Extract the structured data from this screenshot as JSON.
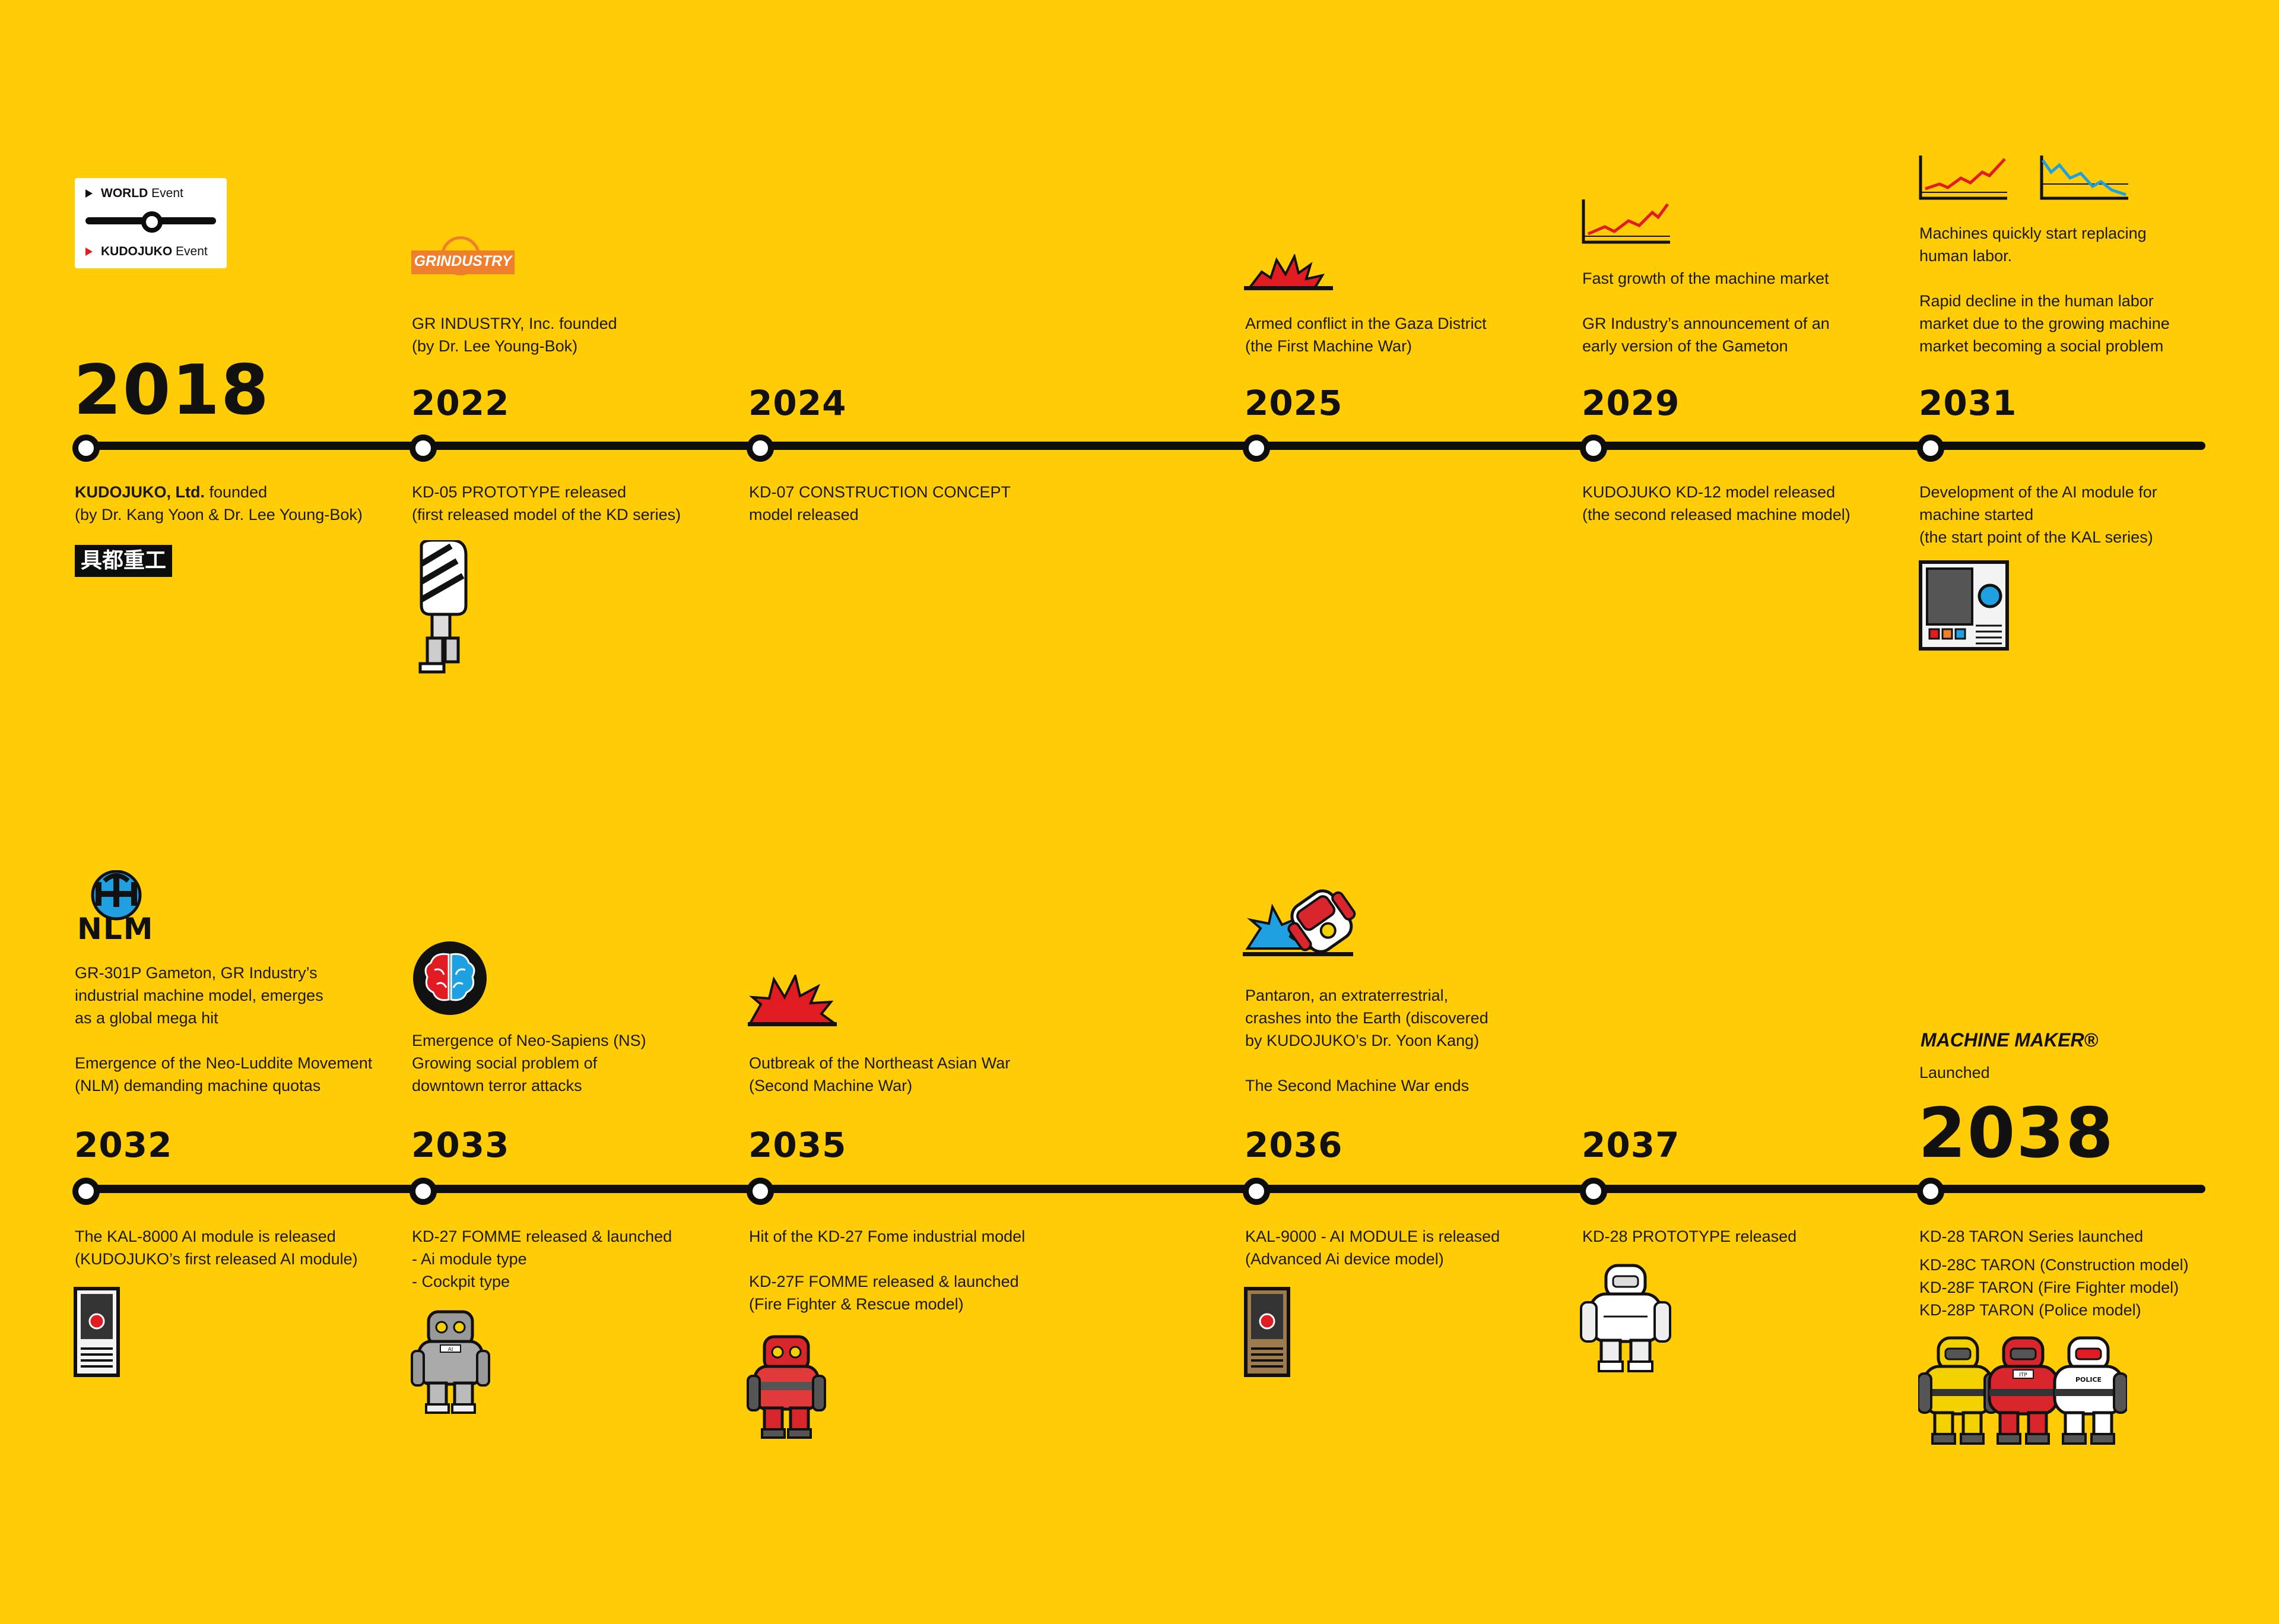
{
  "legend": {
    "world_bold": "WORLD",
    "world_rest": " Event",
    "kudojuko_bold": "KUDOJUKO",
    "kudojuko_rest": " Event"
  },
  "row1": [
    {
      "year": "2018",
      "below": [
        "KUDOJUKO, Ltd. founded",
        "(by Dr. Kang Yoon & Dr. Lee Young-Bok)"
      ],
      "below_bold_prefix": "KUDOJUKO, Ltd.",
      "below_first_rest": " founded",
      "badge": "具都重工"
    },
    {
      "year": "2022",
      "logo_text": "GRINDUSTRY",
      "above": [
        "GR INDUSTRY, Inc. founded",
        "(by Dr. Lee Young-Bok)"
      ],
      "below": [
        "KD-05 PROTOTYPE released",
        "(first released model of the KD series)"
      ]
    },
    {
      "year": "2024",
      "below": [
        "KD-07 CONSTRUCTION CONCEPT",
        "model released"
      ]
    },
    {
      "year": "2025",
      "above": [
        "Armed conflict in the Gaza District",
        "(the First Machine War)"
      ]
    },
    {
      "year": "2029",
      "above": [
        "Fast growth of the machine market",
        "",
        "GR Industry’s announcement of an",
        "early version of the Gameton"
      ],
      "below": [
        "KUDOJUKO KD-12 model released",
        "(the second released machine model)"
      ]
    },
    {
      "year": "2031",
      "above": [
        "Machines quickly start replacing",
        "human labor.",
        "",
        "Rapid decline in the human labor",
        "market due to the growing machine",
        "market becoming a social problem"
      ],
      "below": [
        "Development of the AI module for",
        "machine started",
        "(the start point of the KAL series)"
      ]
    }
  ],
  "row2": [
    {
      "year": "2032",
      "logo_text": "NLM",
      "above": [
        "GR-301P Gameton, GR Industry’s",
        "industrial machine model, emerges",
        "as a global mega hit",
        "",
        "Emergence of the Neo-Luddite Movement",
        "(NLM) demanding machine quotas"
      ],
      "below": [
        "The KAL-8000 AI module is released",
        "(KUDOJUKO’s first released AI module)"
      ]
    },
    {
      "year": "2033",
      "above": [
        "Emergence of Neo-Sapiens (NS)",
        "Growing social problem of",
        "downtown terror attacks"
      ],
      "below": [
        "KD-27 FOMME released & launched",
        "- Ai module type",
        "- Cockpit type"
      ]
    },
    {
      "year": "2035",
      "above": [
        "Outbreak of the Northeast Asian War",
        "(Second Machine War)"
      ],
      "below": [
        "Hit of the KD-27 Fome industrial model",
        "",
        "KD-27F FOMME released & launched",
        "(Fire Fighter & Rescue model)"
      ]
    },
    {
      "year": "2036",
      "above": [
        "Pantaron, an extraterrestrial,",
        "crashes into the Earth (discovered",
        "by KUDOJUKO’s Dr. Yoon Kang)",
        "",
        "The Second Machine War ends"
      ],
      "below": [
        "KAL-9000 - AI MODULE is released",
        "(Advanced Ai device model)"
      ]
    },
    {
      "year": "2037",
      "below": [
        "KD-28 PROTOTYPE released"
      ]
    },
    {
      "year": "2038",
      "above_title": "MACHINE MAKER®",
      "above": [
        "Launched"
      ],
      "below": [
        "KD-28 TARON Series launched",
        "KD-28C TARON (Construction model)",
        "KD-28F TARON (Fire Fighter model)",
        "KD-28P TARON (Police model)"
      ]
    }
  ],
  "robot_labels": [
    "AI",
    "ITP",
    "POLICE"
  ],
  "colors": {
    "background": "#FFCC05",
    "line": "#0d0d0d",
    "accent_red": "#e11b22",
    "accent_blue": "#1fa0e0",
    "gr_orange": "#f07f2d"
  }
}
